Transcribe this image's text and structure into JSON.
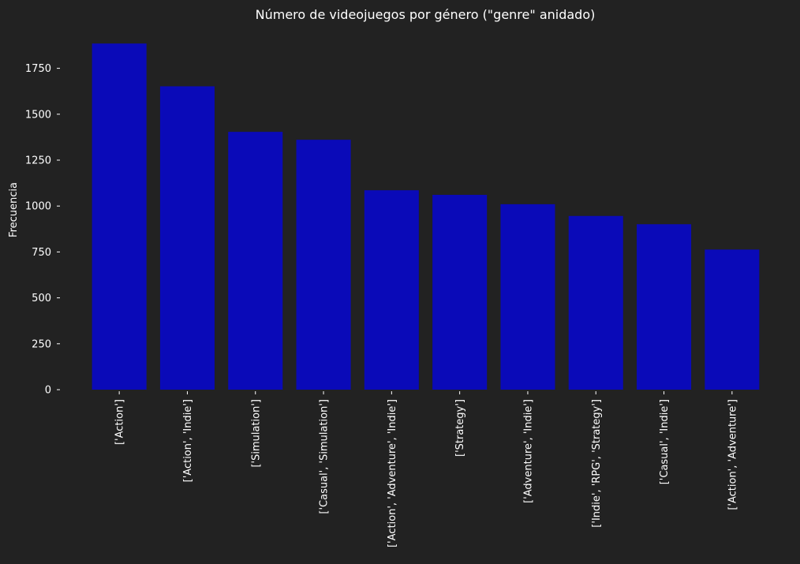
{
  "chart_data": {
    "type": "bar",
    "title": "Número de videojuegos por género (\"genre\" anidado)",
    "xlabel": "",
    "ylabel": "Frecuencia",
    "categories": [
      "['Action']",
      "['Action', 'Indie']",
      "['Simulation']",
      "['Casual', 'Simulation']",
      "['Action', 'Adventure', 'Indie']",
      "['Strategy']",
      "['Adventure', 'Indie']",
      "['Indie', 'RPG', 'Strategy']",
      "['Casual', 'Indie']",
      "['Action', 'Adventure']"
    ],
    "values": [
      1885,
      1652,
      1404,
      1361,
      1086,
      1061,
      1010,
      946,
      901,
      763
    ],
    "ylim": [
      0,
      1895
    ],
    "yticks": [
      0,
      250,
      500,
      750,
      1000,
      1250,
      1500,
      1750
    ],
    "grid": false,
    "bar_color": "#0a0ab8",
    "background_color": "#222222",
    "text_color": "#ffffff"
  }
}
